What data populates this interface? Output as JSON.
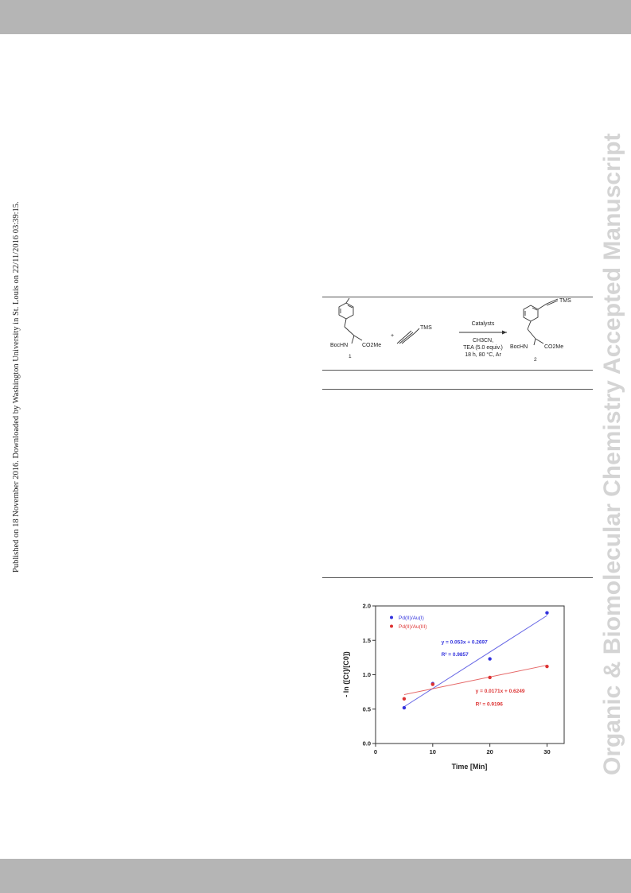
{
  "header": {
    "band_color": "#b5b5b5"
  },
  "footer": {
    "band_color": "#b5b5b5"
  },
  "side_note": "Published on 18 November 2016. Downloaded by Washington University in St. Louis on 22/11/2016 03:39:15.",
  "watermark": "Organic & Biomolecular Chemistry Accepted Manuscript",
  "scheme": {
    "reactant_left_group": "BocHN",
    "reactant_right_group": "CO2Me",
    "reactant_number": "1",
    "plus": "+",
    "alkyne_group": "TMS",
    "conditions": [
      "Catalysts",
      "CH3CN,",
      "TEA (5.0 equiv.)",
      "18 h, 80 °C, Ar"
    ],
    "product_top_group": "TMS",
    "product_left_group": "BocHN",
    "product_right_group": "CO2Me",
    "product_number": "2"
  },
  "chart_data": {
    "type": "scatter",
    "xlabel": "Time [Min]",
    "ylabel": "- ln ([Ct]/[C0])",
    "xlim": [
      0,
      33
    ],
    "ylim": [
      0,
      2.0
    ],
    "x_ticks": [
      0,
      10,
      20,
      30
    ],
    "y_ticks": [
      0.0,
      0.5,
      1.0,
      1.5,
      2.0
    ],
    "grid": false,
    "legend": "top-left",
    "series": [
      {
        "name": "Pd(II)/Au(I)",
        "color": "#3333dd",
        "x": [
          5,
          10,
          20,
          30
        ],
        "y": [
          0.52,
          0.87,
          1.23,
          1.9
        ],
        "fit": {
          "slope": 0.053,
          "intercept": 0.2697
        },
        "equation": "y = 0.053x + 0.2697",
        "r2": "R² = 0.9857"
      },
      {
        "name": "Pd(II)/Au(III)",
        "color": "#dd3333",
        "x": [
          5,
          10,
          20,
          30
        ],
        "y": [
          0.65,
          0.86,
          0.96,
          1.12
        ],
        "fit": {
          "slope": 0.0171,
          "intercept": 0.6249
        },
        "equation": "y = 0.0171x + 0.6249",
        "r2": "R² = 0.9196"
      }
    ]
  }
}
